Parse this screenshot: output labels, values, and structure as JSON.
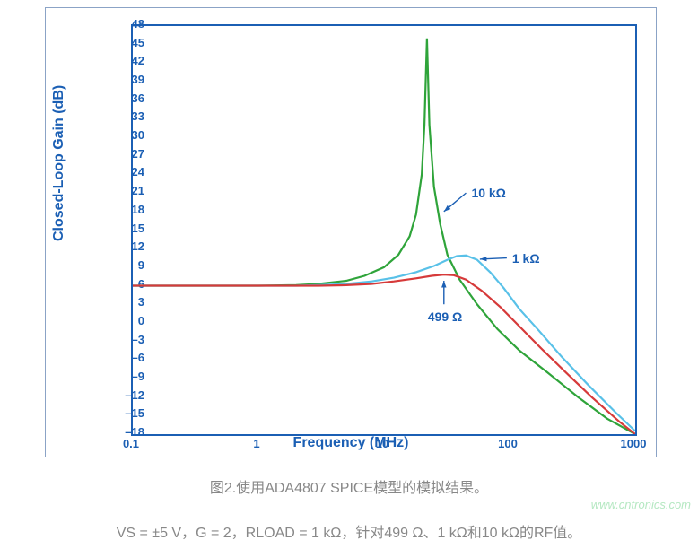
{
  "chart": {
    "type": "line-log-x",
    "ylabel": "Closed-Loop Gain (dB)",
    "xlabel": "Frequency (MHz)",
    "ylim": [
      -18,
      48
    ],
    "xlim_log": [
      0.1,
      1000
    ],
    "ytick_step": 3,
    "xticks": [
      0.1,
      1,
      10,
      100,
      1000
    ],
    "xtick_labels": [
      "0.1",
      "1",
      "10",
      "100",
      "1000"
    ],
    "title_fontsize": 16,
    "label_fontsize": 16,
    "tick_fontsize": 13,
    "line_width": 2.2,
    "border_color": "#1b5fb4",
    "panel_border_color": "#8ba3c6",
    "grid": false,
    "background_color": "#ffffff",
    "series": [
      {
        "name": "10k",
        "label": "10 kΩ",
        "color": "#2fa43a",
        "x": [
          0.1,
          0.3,
          1,
          2,
          3,
          5,
          7,
          10,
          13,
          16,
          18,
          20,
          21,
          22,
          23,
          25,
          28,
          32,
          40,
          55,
          80,
          120,
          200,
          350,
          600,
          1000
        ],
        "y": [
          6,
          6,
          6,
          6.1,
          6.3,
          6.8,
          7.6,
          9,
          11,
          14,
          17.5,
          24,
          32,
          46,
          32,
          22,
          16,
          11,
          7,
          3,
          -1,
          -4.5,
          -8,
          -12,
          -15.5,
          -18
        ]
      },
      {
        "name": "1k",
        "label": "1 kΩ",
        "color": "#59c1e8",
        "x": [
          0.1,
          0.3,
          1,
          2,
          3,
          5,
          8,
          12,
          18,
          25,
          32,
          38,
          45,
          55,
          70,
          90,
          120,
          170,
          260,
          420,
          700,
          1000
        ],
        "y": [
          6,
          6,
          6,
          6,
          6.1,
          6.3,
          6.7,
          7.3,
          8.2,
          9.2,
          10.2,
          10.8,
          10.9,
          10.2,
          8.2,
          5.6,
          2.2,
          -1.2,
          -5.5,
          -10,
          -14.5,
          -17.5
        ]
      },
      {
        "name": "499",
        "label": "499 Ω",
        "color": "#d63a3a",
        "x": [
          0.1,
          0.3,
          1,
          2,
          3,
          5,
          8,
          12,
          18,
          24,
          30,
          36,
          45,
          60,
          85,
          120,
          180,
          280,
          450,
          750,
          1000
        ],
        "y": [
          6,
          6,
          6,
          6,
          6,
          6.1,
          6.3,
          6.7,
          7.2,
          7.6,
          7.8,
          7.7,
          7,
          5.2,
          2.5,
          -0.6,
          -4.2,
          -8,
          -12,
          -16,
          -18
        ]
      }
    ],
    "annotations": [
      {
        "label": "10 kΩ",
        "target": "10k",
        "tx": 45,
        "ty": 21,
        "ax": 30,
        "ay": 18
      },
      {
        "label": "1 kΩ",
        "target": "1k",
        "tx": 95,
        "ty": 10.5,
        "ax": 58,
        "ay": 10.3
      },
      {
        "label": "499 Ω",
        "target": "499",
        "tx": 30,
        "ty": 3,
        "ax": 30,
        "ay": 6.8
      }
    ]
  },
  "caption": "图2.使用ADA4807 SPICE模型的模拟结果。",
  "subcaption": "VS = ±5 V，G = 2，RLOAD = 1 kΩ，针对499 Ω、1 kΩ和10 kΩ的RF值。",
  "watermark": "www.cntronics.com"
}
